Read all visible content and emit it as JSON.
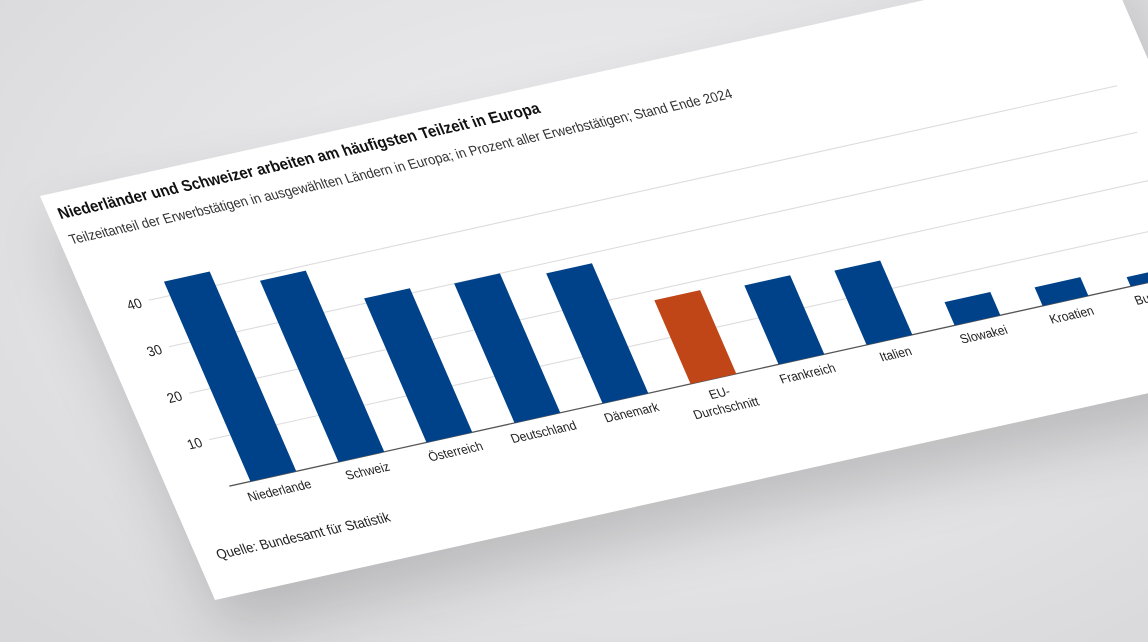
{
  "chart_data": {
    "type": "bar",
    "title": "Niederländer und Schweizer arbeiten am häufigsten Teilzeit in Europa",
    "subtitle": "Teilzeitanteil der Erwerbstätigen in ausgewählten Ländern in Europa; in Prozent aller Erwerbstätigen; Stand Ende 2024",
    "source": "Quelle: Bundesamt für Statistik",
    "categories": [
      "Niederlande",
      "Schweiz",
      "Österreich",
      "Deutschland",
      "Dänemark",
      "EU-Durchschnitt",
      "Frankreich",
      "Italien",
      "Slowakei",
      "Kroatien",
      "Bulgarien"
    ],
    "category_label_lines": [
      [
        "Niederlande"
      ],
      [
        "Schweiz"
      ],
      [
        "Österreich"
      ],
      [
        "Deutschland"
      ],
      [
        "Dänemark"
      ],
      [
        "EU-",
        "Durchschnitt"
      ],
      [
        "Frankreich"
      ],
      [
        "Italien"
      ],
      [
        "Slowakei"
      ],
      [
        "Kroatien"
      ],
      [
        "Bulgarien"
      ]
    ],
    "values": [
      43,
      39,
      31,
      30,
      28,
      18,
      17,
      16,
      5,
      4,
      2
    ],
    "highlight_index": 5,
    "yticks": [
      10,
      20,
      30,
      40
    ],
    "ylim": [
      0,
      50
    ],
    "grid": true,
    "colors": {
      "bar": "#00428a",
      "highlight": "#c04617",
      "grid": "#dcdcdc",
      "axis": "#555555"
    }
  }
}
